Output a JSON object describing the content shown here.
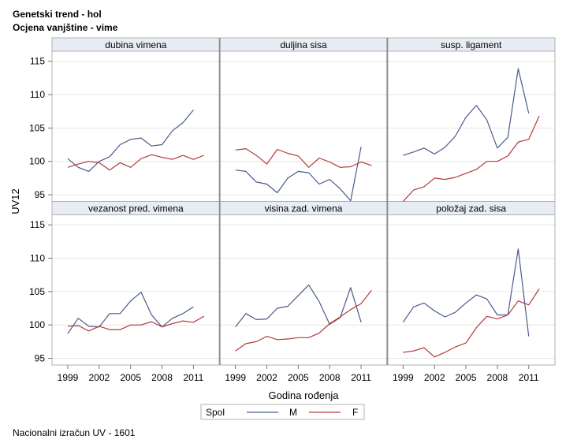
{
  "titles": {
    "line1": "Genetski trend - hol",
    "line2": "Ocjena vanjštine - vime"
  },
  "footnote": "Nacionalni izračun UV - 1601",
  "colors": {
    "M": "#4a5a8c",
    "F": "#b33a3a",
    "frame": "#b0b0b0",
    "header_bg": "#e8ecf4",
    "divider": "#909090"
  },
  "chart_data": {
    "type": "line",
    "xlabel": "Godina rođenja",
    "ylabel": "UV12",
    "xlim": [
      1999,
      2012
    ],
    "ylim": [
      94,
      116.5
    ],
    "xticks": [
      "1999",
      "2002",
      "2005",
      "2008",
      "2011"
    ],
    "yticks": [
      "95",
      "100",
      "105",
      "110",
      "115"
    ],
    "grid": "horizontal",
    "legend": {
      "title": "Spol",
      "placement": "bottom",
      "entries": [
        "M",
        "F"
      ]
    },
    "x": [
      1999,
      2000,
      2001,
      2002,
      2003,
      2004,
      2005,
      2006,
      2007,
      2008,
      2009,
      2010,
      2011,
      2012
    ],
    "panels": [
      {
        "label": "dubina vimena",
        "series": [
          {
            "name": "M",
            "values": [
              100.4,
              99.1,
              98.5,
              100.0,
              100.7,
              102.5,
              103.3,
              103.5,
              102.3,
              102.5,
              104.6,
              105.8,
              107.7,
              null
            ]
          },
          {
            "name": "F",
            "values": [
              99.1,
              99.6,
              100.0,
              99.8,
              98.7,
              99.8,
              99.1,
              100.4,
              101.0,
              100.6,
              100.3,
              100.9,
              100.3,
              100.9
            ]
          }
        ]
      },
      {
        "label": "duljina sisa",
        "series": [
          {
            "name": "M",
            "values": [
              98.7,
              98.5,
              96.9,
              96.6,
              95.3,
              97.5,
              98.5,
              98.3,
              96.6,
              97.3,
              95.9,
              94.1,
              102.2,
              null
            ]
          },
          {
            "name": "F",
            "values": [
              101.7,
              101.9,
              100.9,
              99.6,
              101.8,
              101.2,
              100.8,
              99.1,
              100.5,
              99.9,
              99.1,
              99.2,
              99.9,
              99.4
            ]
          }
        ]
      },
      {
        "label": "susp. ligament",
        "series": [
          {
            "name": "M",
            "values": [
              100.9,
              101.4,
              102.0,
              101.1,
              102.1,
              103.8,
              106.6,
              108.4,
              106.2,
              102.0,
              103.6,
              113.9,
              107.2,
              null
            ]
          },
          {
            "name": "F",
            "values": [
              94.0,
              95.7,
              96.2,
              97.5,
              97.3,
              97.6,
              98.2,
              98.8,
              100.0,
              100.0,
              100.8,
              102.9,
              103.3,
              106.8
            ]
          }
        ]
      },
      {
        "label": "vezanost pred. vimena",
        "series": [
          {
            "name": "M",
            "values": [
              98.7,
              101.0,
              99.8,
              99.7,
              101.7,
              101.7,
              103.6,
              104.9,
              101.5,
              99.7,
              101.0,
              101.7,
              102.7,
              null
            ]
          },
          {
            "name": "F",
            "values": [
              99.8,
              99.9,
              99.1,
              99.8,
              99.3,
              99.3,
              100.0,
              100.0,
              100.5,
              99.7,
              100.2,
              100.6,
              100.4,
              101.3
            ]
          }
        ]
      },
      {
        "label": "visina zad. vimena",
        "series": [
          {
            "name": "M",
            "values": [
              99.7,
              101.7,
              100.8,
              100.9,
              102.5,
              102.8,
              104.4,
              106.0,
              103.5,
              100.1,
              101.1,
              105.6,
              100.4,
              null
            ]
          },
          {
            "name": "F",
            "values": [
              96.1,
              97.2,
              97.5,
              98.3,
              97.8,
              97.9,
              98.1,
              98.1,
              98.8,
              100.2,
              101.2,
              102.3,
              103.2,
              105.2
            ]
          }
        ]
      },
      {
        "label": "položaj zad. sisa",
        "series": [
          {
            "name": "M",
            "values": [
              100.4,
              102.7,
              103.3,
              102.1,
              101.2,
              101.9,
              103.3,
              104.5,
              103.9,
              101.5,
              101.5,
              111.4,
              98.3,
              null
            ]
          },
          {
            "name": "F",
            "values": [
              95.9,
              96.1,
              96.6,
              95.2,
              95.9,
              96.7,
              97.3,
              99.6,
              101.3,
              100.9,
              101.5,
              103.6,
              103.0,
              105.4
            ]
          }
        ]
      }
    ]
  }
}
